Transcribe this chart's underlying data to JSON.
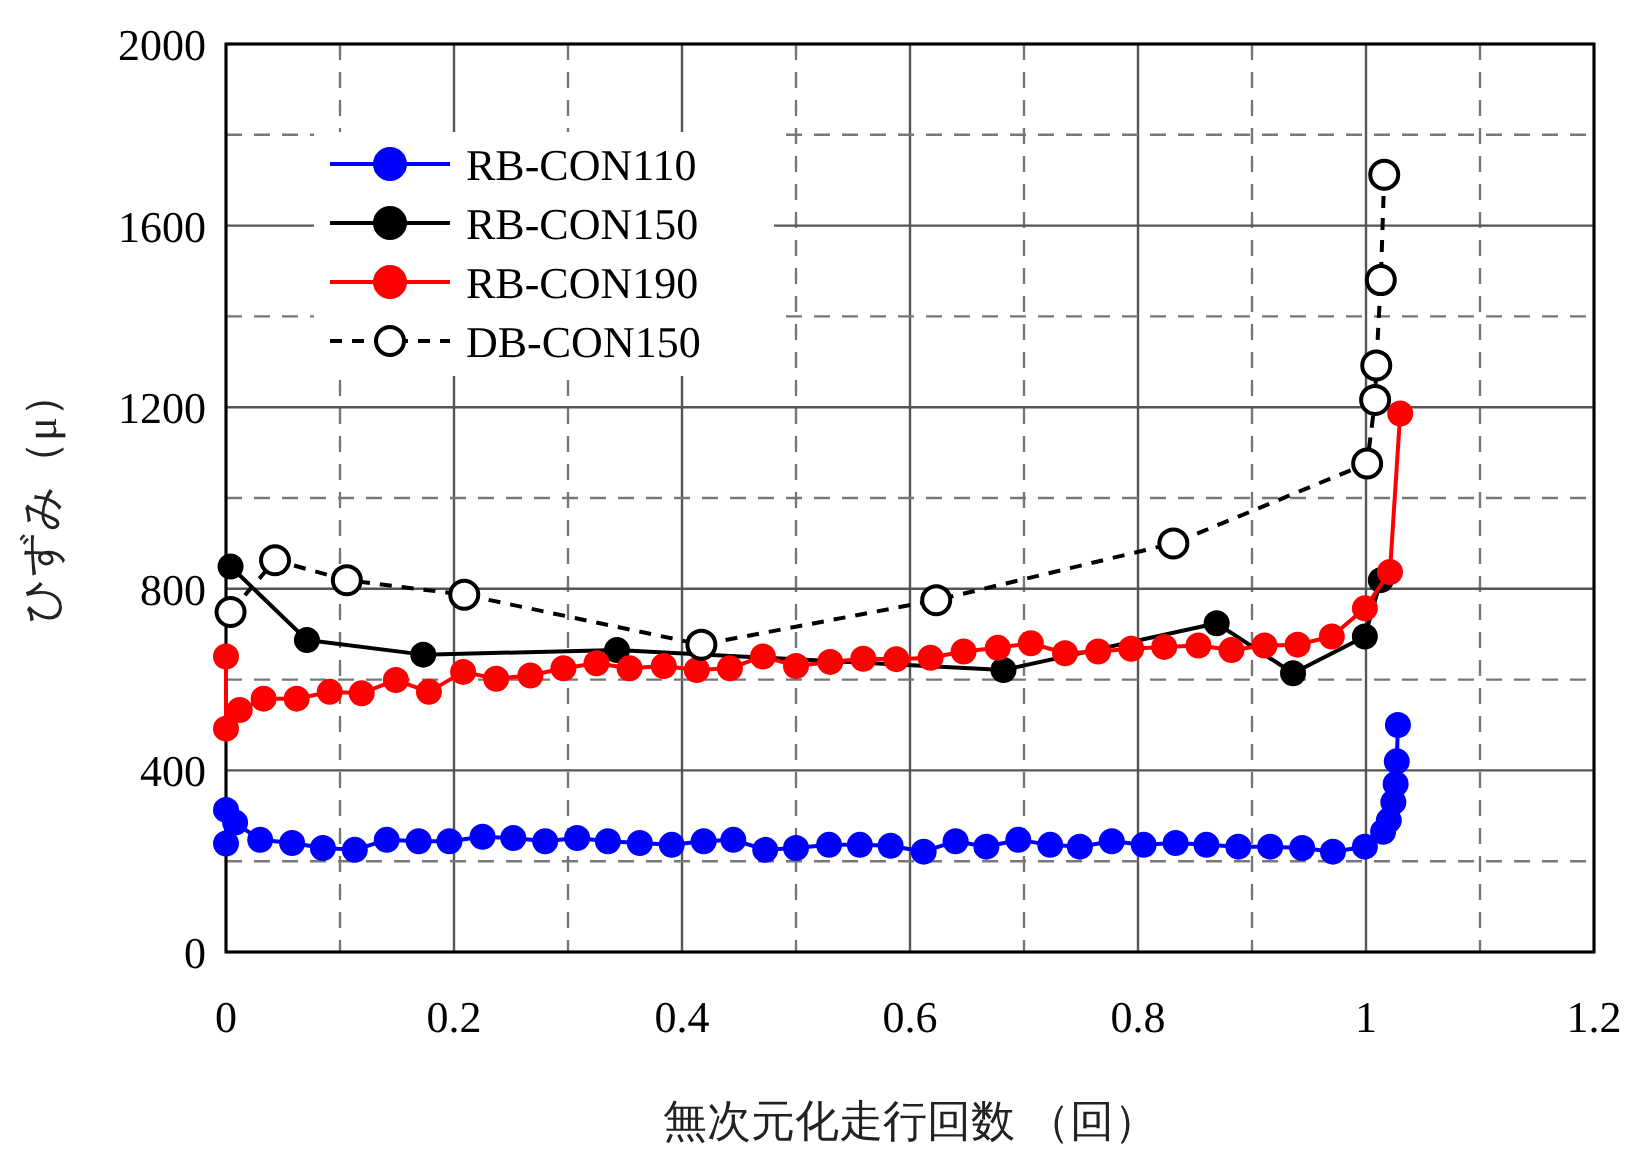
{
  "chart_data": {
    "type": "line",
    "xlabel": "無次元化走行回数 （回）",
    "ylabel": "ひずみ（μ）",
    "xlim": [
      0,
      1.2
    ],
    "xticks": [
      0,
      0.2,
      0.4,
      0.6,
      0.8,
      1,
      1.2
    ],
    "ylim": [
      0,
      2000
    ],
    "yticks": [
      0,
      400,
      800,
      1200,
      1600,
      2000
    ],
    "grid": true,
    "legend": "top left",
    "marker": "circle",
    "series": [
      {
        "name": "RB-CON110",
        "color": "#0000ff",
        "line_style": "solid",
        "x": [
          0,
          0,
          0.008,
          0.03,
          0.058,
          0.085,
          0.113,
          0.141,
          0.169,
          0.196,
          0.225,
          0.252,
          0.28,
          0.308,
          0.335,
          0.363,
          0.391,
          0.419,
          0.445,
          0.473,
          0.5,
          0.529,
          0.556,
          0.583,
          0.612,
          0.64,
          0.667,
          0.695,
          0.723,
          0.749,
          0.777,
          0.805,
          0.833,
          0.86,
          0.888,
          0.916,
          0.944,
          0.971,
          0.999,
          1.015,
          1.02,
          1.024,
          1.026,
          1.027,
          1.028
        ],
        "values": [
          239,
          313,
          285,
          247,
          240,
          229,
          225,
          247,
          244,
          244,
          254,
          251,
          244,
          251,
          244,
          240,
          236,
          244,
          247,
          225,
          229,
          236,
          236,
          234,
          221,
          244,
          232,
          247,
          236,
          232,
          244,
          236,
          240,
          236,
          232,
          232,
          229,
          221,
          232,
          265,
          290,
          330,
          370,
          420,
          500
        ]
      },
      {
        "name": "RB-CON150",
        "color": "#000000",
        "line_style": "solid",
        "x": [
          0.004,
          0.071,
          0.173,
          0.343,
          0.682,
          0.869,
          0.936,
          0.999,
          1.013
        ],
        "values": [
          849,
          687,
          655,
          665,
          621,
          724,
          614,
          695,
          819
        ]
      },
      {
        "name": "RB-CON190",
        "color": "#ff0000",
        "line_style": "solid",
        "x": [
          0,
          0,
          0.012,
          0.033,
          0.062,
          0.091,
          0.119,
          0.149,
          0.178,
          0.208,
          0.237,
          0.267,
          0.296,
          0.325,
          0.354,
          0.384,
          0.413,
          0.442,
          0.471,
          0.5,
          0.53,
          0.559,
          0.588,
          0.618,
          0.647,
          0.677,
          0.706,
          0.736,
          0.765,
          0.794,
          0.823,
          0.853,
          0.882,
          0.911,
          0.94,
          0.97,
          0.999,
          1.021,
          1.03
        ],
        "values": [
          651,
          492,
          533,
          558,
          558,
          573,
          570,
          599,
          573,
          617,
          602,
          609,
          625,
          636,
          625,
          630,
          621,
          625,
          651,
          630,
          639,
          646,
          645,
          648,
          662,
          670,
          680,
          658,
          662,
          668,
          672,
          675,
          665,
          675,
          677,
          695,
          757,
          837,
          1186
        ]
      },
      {
        "name": "DB-CON150",
        "color": "#000000",
        "line_style": "dashed",
        "x": [
          0.004,
          0.043,
          0.106,
          0.209,
          0.417,
          0.623,
          0.831,
          1.001,
          1.008,
          1.009,
          1.013,
          1.016
        ],
        "values": [
          749,
          863,
          819,
          787,
          677,
          775,
          900,
          1076,
          1216,
          1292,
          1480,
          1712
        ]
      }
    ]
  }
}
